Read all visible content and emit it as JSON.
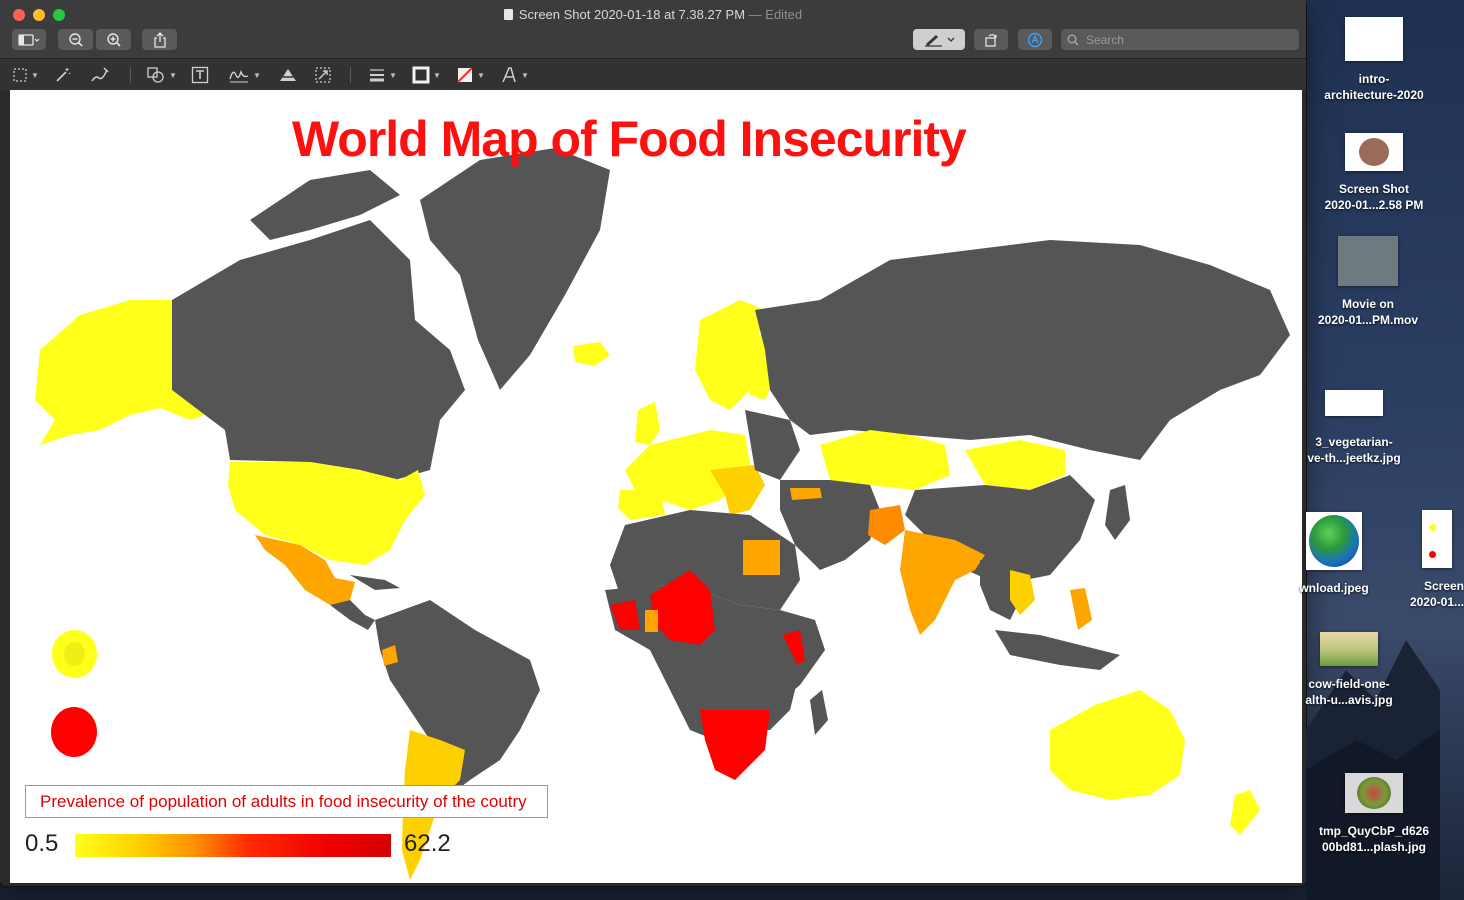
{
  "window": {
    "title": "Screen Shot 2020-01-18 at 7.38.27 PM",
    "title_status": "— Edited"
  },
  "toolbar": {
    "search_placeholder": "Search",
    "icons": [
      "sidebar-icon",
      "zoom-out-icon",
      "zoom-in-icon",
      "share-icon",
      "markup-pen-icon",
      "rotate-icon",
      "annotate-icon",
      "search-icon"
    ]
  },
  "markup_toolbar": {
    "icons": [
      "rect-select-icon",
      "instant-alpha-icon",
      "sketch-icon",
      "shapes-icon",
      "text-icon",
      "sign-icon",
      "adjust-color-icon",
      "adjust-size-icon",
      "line-style-icon",
      "border-color-icon",
      "fill-color-icon",
      "text-style-icon"
    ]
  },
  "document": {
    "map_title": "World Map of Food Insecurity",
    "legend_caption": "Prevalence of population of adults in food insecurity of the coutry",
    "scale_min": "0.5",
    "scale_max": "62.2",
    "colors": {
      "no_data": "#555555",
      "low": "#ffff1a",
      "mid": "#ffa500",
      "high": "#ff0000",
      "ocean": "#ffffff"
    }
  },
  "desktop": {
    "icons": [
      {
        "label": "intro-\narchitecture-2020"
      },
      {
        "label": "Screen Shot\n2020-01...2.58 PM"
      },
      {
        "label": "Movie on\n2020-01...PM.mov"
      },
      {
        "label": "3_vegetarian-\nve-th...jeetkz.jpg"
      },
      {
        "label": "wnload.jpeg"
      },
      {
        "label": "Screen\n2020-01..."
      },
      {
        "label": "cow-field-one-\nalth-u...avis.jpg"
      },
      {
        "label": "tmp_QuyCbP_d626\n00bd81...plash.jpg"
      }
    ]
  }
}
